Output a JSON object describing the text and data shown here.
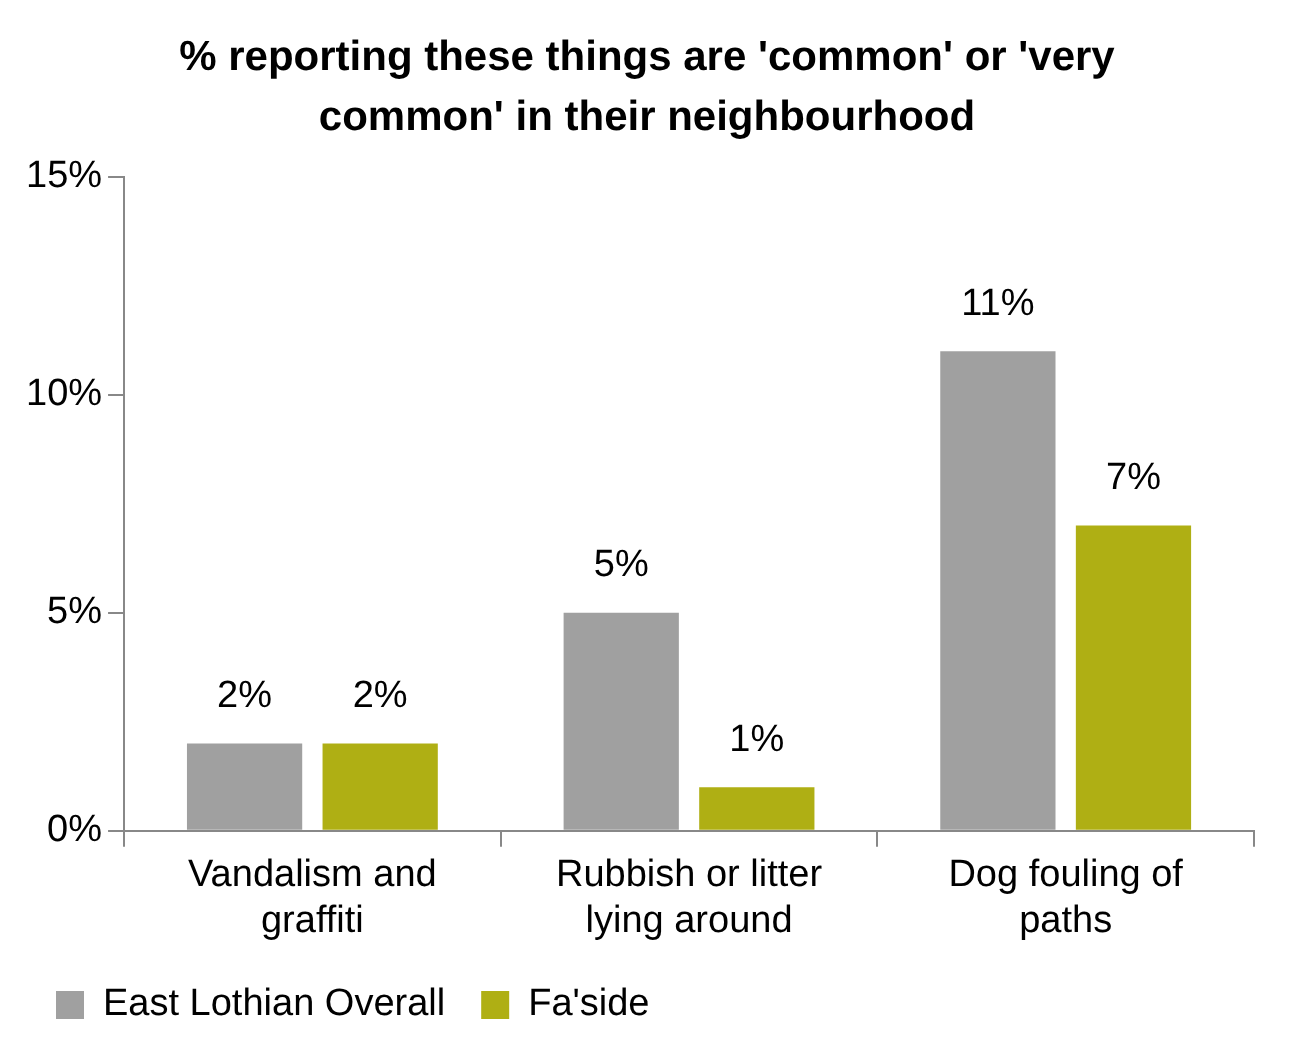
{
  "chart_data": {
    "type": "bar",
    "title": "% reporting these things are 'common' or 'very common' in their neighbourhood",
    "categories": [
      "Vandalism and graffiti",
      "Rubbish or litter lying around",
      "Dog fouling of paths"
    ],
    "series": [
      {
        "name": "East Lothian Overall",
        "color": "#a0a0a0",
        "values": [
          2,
          5,
          11
        ],
        "value_labels": [
          "2%",
          "5%",
          "11%"
        ]
      },
      {
        "name": "Fa'side",
        "color": "#afaf14",
        "values": [
          2,
          1,
          7
        ],
        "value_labels": [
          "2%",
          "1%",
          "7%"
        ]
      }
    ],
    "ylim": [
      0,
      15
    ],
    "yticks": [
      {
        "value": 0,
        "label": "0%"
      },
      {
        "value": 5,
        "label": "5%"
      },
      {
        "value": 10,
        "label": "10%"
      },
      {
        "value": 15,
        "label": "15%"
      }
    ],
    "grid": false,
    "legend": "bottom"
  }
}
